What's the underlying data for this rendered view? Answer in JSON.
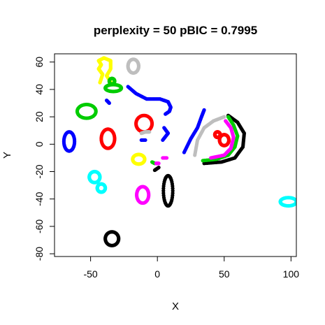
{
  "chart_data": {
    "type": "scatter",
    "title": "perplexity = 50 pBIC = 0.7995",
    "xlabel": "X",
    "ylabel": "Y",
    "xlim": [
      -77,
      104
    ],
    "ylim": [
      -82,
      66
    ],
    "xticks": [
      -50,
      0,
      50,
      100
    ],
    "yticks": [
      -80,
      -60,
      -40,
      -20,
      0,
      20,
      40,
      60
    ],
    "grid": false,
    "legend": "none",
    "colors": {
      "red": "#ff0000",
      "blue": "#0000ff",
      "green": "#00cc00",
      "yellow": "#ffff00",
      "gray": "#bebebe",
      "magenta": "#ff00ff",
      "black": "#000000",
      "cyan": "#00ffff"
    },
    "clusters": [
      {
        "color": "yellow",
        "shape": "path",
        "points": [
          [
            -43,
            45
          ],
          [
            -41,
            51
          ],
          [
            -44,
            55
          ],
          [
            -42,
            58
          ],
          [
            -44,
            61
          ],
          [
            -40,
            63
          ],
          [
            -35,
            61
          ],
          [
            -35,
            55
          ],
          [
            -38,
            50
          ],
          [
            -34,
            44
          ]
        ]
      },
      {
        "color": "gray",
        "shape": "ring",
        "cx": -18,
        "cy": 57,
        "rx": 4,
        "ry": 5
      },
      {
        "color": "green",
        "shape": "ring",
        "cx": -33,
        "cy": 41,
        "rx": 6,
        "ry": 2.5
      },
      {
        "color": "green",
        "shape": "ring",
        "cx": -34,
        "cy": 46,
        "rx": 2,
        "ry": 2
      },
      {
        "color": "green",
        "shape": "ring",
        "cx": -53,
        "cy": 24,
        "rx": 7,
        "ry": 5
      },
      {
        "color": "blue",
        "shape": "ring",
        "cx": -66,
        "cy": 2,
        "rx": 4,
        "ry": 7
      },
      {
        "color": "red",
        "shape": "ring",
        "cx": -37,
        "cy": 4,
        "rx": 5,
        "ry": 7
      },
      {
        "color": "red",
        "shape": "ring",
        "cx": -10,
        "cy": 15,
        "rx": 6,
        "ry": 6
      },
      {
        "color": "yellow",
        "shape": "ring",
        "cx": -14,
        "cy": -11,
        "rx": 4.5,
        "ry": 3.5
      },
      {
        "color": "cyan",
        "shape": "ring",
        "cx": -47,
        "cy": -24,
        "rx": 4,
        "ry": 4
      },
      {
        "color": "cyan",
        "shape": "ring",
        "cx": -42,
        "cy": -32,
        "rx": 3,
        "ry": 3
      },
      {
        "color": "magenta",
        "shape": "ring",
        "cx": -11,
        "cy": -37,
        "rx": 4.5,
        "ry": 6
      },
      {
        "color": "black",
        "shape": "ring",
        "cx": 8,
        "cy": -34,
        "rx": 3.5,
        "ry": 11
      },
      {
        "color": "black",
        "shape": "ring",
        "cx": -34,
        "cy": -69,
        "rx": 5,
        "ry": 5
      },
      {
        "color": "cyan",
        "shape": "ring",
        "cx": 98,
        "cy": -42,
        "rx": 6,
        "ry": 3
      },
      {
        "color": "blue",
        "shape": "path",
        "points": [
          [
            -22,
            42
          ],
          [
            -16,
            37
          ],
          [
            -8,
            33
          ],
          [
            2,
            33
          ],
          [
            8,
            31
          ],
          [
            10,
            27
          ],
          [
            9,
            24
          ],
          [
            6,
            22
          ]
        ]
      },
      {
        "color": "blue",
        "shape": "path",
        "points": [
          [
            -38,
            32
          ],
          [
            -36,
            30
          ]
        ]
      },
      {
        "color": "blue",
        "shape": "path",
        "points": [
          [
            5,
            12
          ],
          [
            8,
            8
          ],
          [
            4,
            3
          ]
        ]
      },
      {
        "color": "blue",
        "shape": "path",
        "points": [
          [
            -12,
            3
          ],
          [
            -9,
            3
          ]
        ]
      },
      {
        "color": "blue",
        "shape": "path",
        "points": [
          [
            20,
            -6
          ],
          [
            25,
            4
          ],
          [
            30,
            12
          ],
          [
            33,
            20
          ],
          [
            35,
            25
          ]
        ]
      },
      {
        "color": "gray",
        "shape": "path",
        "points": [
          [
            28,
            -8
          ],
          [
            30,
            3
          ],
          [
            35,
            12
          ],
          [
            42,
            17
          ],
          [
            50,
            20
          ]
        ]
      },
      {
        "color": "gray",
        "shape": "path",
        "points": [
          [
            -12,
            8
          ],
          [
            -9,
            9
          ],
          [
            -6,
            9
          ]
        ]
      },
      {
        "color": "black",
        "shape": "path",
        "points": [
          [
            35,
            -14
          ],
          [
            48,
            -13
          ],
          [
            58,
            -10
          ],
          [
            64,
            -2
          ],
          [
            65,
            8
          ],
          [
            60,
            16
          ],
          [
            53,
            21
          ]
        ]
      },
      {
        "color": "green",
        "shape": "path",
        "points": [
          [
            34,
            -12
          ],
          [
            44,
            -11
          ],
          [
            53,
            -8
          ],
          [
            58,
            -2
          ],
          [
            60,
            6
          ],
          [
            57,
            14
          ],
          [
            53,
            20
          ]
        ]
      },
      {
        "color": "magenta",
        "shape": "path",
        "points": [
          [
            40,
            -10
          ],
          [
            50,
            -8
          ],
          [
            55,
            -3
          ],
          [
            57,
            5
          ],
          [
            55,
            12
          ],
          [
            51,
            17
          ]
        ]
      },
      {
        "color": "red",
        "shape": "ring",
        "cx": 50,
        "cy": 3,
        "rx": 3.5,
        "ry": 4
      },
      {
        "color": "red",
        "shape": "ring",
        "cx": 45,
        "cy": 7,
        "rx": 2,
        "ry": 2
      },
      {
        "color": "green",
        "shape": "path",
        "points": [
          [
            -4,
            -13
          ],
          [
            -2,
            -14
          ]
        ]
      },
      {
        "color": "magenta",
        "shape": "path",
        "points": [
          [
            -1,
            -14
          ],
          [
            1,
            -14
          ]
        ]
      },
      {
        "color": "magenta",
        "shape": "path",
        "points": [
          [
            4,
            -10
          ],
          [
            7,
            -10
          ]
        ]
      },
      {
        "color": "black",
        "shape": "path",
        "points": [
          [
            -2,
            -19
          ],
          [
            1,
            -17
          ]
        ]
      }
    ]
  }
}
